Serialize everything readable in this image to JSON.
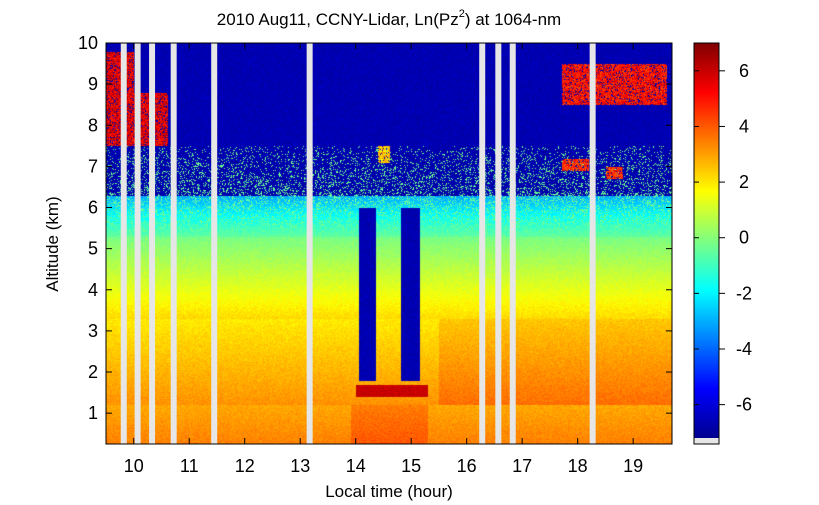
{
  "chart_data": {
    "type": "heatmap",
    "title_main": "2010 Aug11, CCNY-Lidar, Ln(Pz",
    "title_sup": "2",
    "title_tail": ") at 1064-nm",
    "xlabel": "Local time (hour)",
    "ylabel": "Altitude (km)",
    "xlim": [
      9.5,
      19.7
    ],
    "ylim": [
      0.25,
      10
    ],
    "x_ticks": [
      10,
      11,
      12,
      13,
      14,
      15,
      16,
      17,
      18,
      19
    ],
    "y_ticks": [
      1,
      2,
      3,
      4,
      5,
      6,
      7,
      8,
      9,
      10
    ],
    "colorbar": {
      "range": [
        -7.2,
        7.0
      ],
      "ticks": [
        6,
        4,
        2,
        0,
        -2,
        -4,
        -6
      ],
      "tick_labels": [
        "6",
        "4",
        "2",
        "0",
        "-2",
        "-4",
        "-6"
      ],
      "colormap": "jet"
    },
    "gaps_hours": [
      9.82,
      10.07,
      10.33,
      10.72,
      11.45,
      13.17,
      16.28,
      16.57,
      16.83,
      18.27
    ],
    "features": {
      "boundary_layer_top_km": 3.3,
      "aerosol_layer_top_km": 5.3,
      "noise_floor_km": 6.3,
      "clouds": [
        {
          "time": [
            9.5,
            10.0
          ],
          "alt": [
            7.5,
            9.8
          ],
          "value": 6.5
        },
        {
          "time": [
            10.0,
            10.6
          ],
          "alt": [
            7.5,
            8.8
          ],
          "value": 6.5
        },
        {
          "time": [
            17.7,
            19.6
          ],
          "alt": [
            8.5,
            9.5
          ],
          "value": 6.0
        },
        {
          "time": [
            17.7,
            18.2
          ],
          "alt": [
            6.9,
            7.2
          ],
          "value": 5.5
        },
        {
          "time": [
            18.5,
            18.8
          ],
          "alt": [
            6.7,
            7.0
          ],
          "value": 5.5
        },
        {
          "time": [
            14.4,
            14.6
          ],
          "alt": [
            7.1,
            7.5
          ],
          "value": 3.5
        }
      ]
    }
  }
}
